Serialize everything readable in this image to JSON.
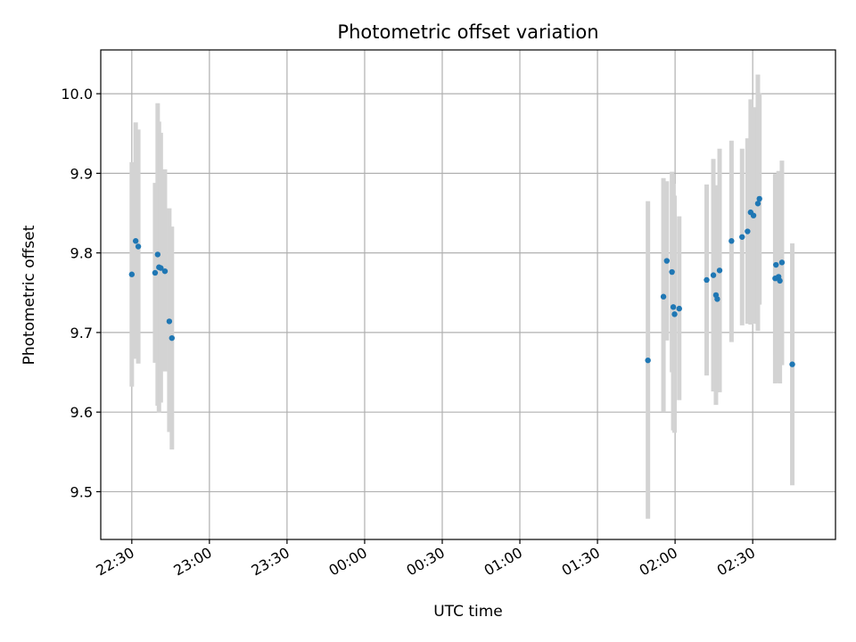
{
  "chart_data": {
    "type": "scatter",
    "title": "Photometric offset variation",
    "xlabel": "UTC time",
    "ylabel": "Photometric offset",
    "x_unit": "UTC time (minutes; 00:00 = 1440)",
    "xlim": [
      1338,
      1622
    ],
    "ylim": [
      9.44,
      10.055
    ],
    "grid": true,
    "x_ticks": [
      {
        "value": 1350,
        "label": "22:30"
      },
      {
        "value": 1380,
        "label": "23:00"
      },
      {
        "value": 1410,
        "label": "23:30"
      },
      {
        "value": 1440,
        "label": "00:00"
      },
      {
        "value": 1470,
        "label": "00:30"
      },
      {
        "value": 1500,
        "label": "01:00"
      },
      {
        "value": 1530,
        "label": "01:30"
      },
      {
        "value": 1560,
        "label": "02:00"
      },
      {
        "value": 1590,
        "label": "02:30"
      }
    ],
    "y_ticks": [
      {
        "value": 9.5,
        "label": "9.5"
      },
      {
        "value": 9.6,
        "label": "9.6"
      },
      {
        "value": 9.7,
        "label": "9.7"
      },
      {
        "value": 9.8,
        "label": "9.8"
      },
      {
        "value": 9.9,
        "label": "9.9"
      },
      {
        "value": 10.0,
        "label": "10.0"
      }
    ],
    "colors": {
      "point": "#1f77b4",
      "errorbar": "#d3d3d3",
      "grid": "#b0b0b0"
    },
    "points": [
      {
        "x": 1350.0,
        "y": 9.773,
        "lo": 9.632,
        "hi": 9.914
      },
      {
        "x": 1351.5,
        "y": 9.815,
        "lo": 9.667,
        "hi": 9.964
      },
      {
        "x": 1352.5,
        "y": 9.808,
        "lo": 9.661,
        "hi": 9.955
      },
      {
        "x": 1359.0,
        "y": 9.775,
        "lo": 9.662,
        "hi": 9.888
      },
      {
        "x": 1360.0,
        "y": 9.798,
        "lo": 9.608,
        "hi": 9.988
      },
      {
        "x": 1360.5,
        "y": 9.782,
        "lo": 9.599,
        "hi": 9.965
      },
      {
        "x": 1361.2,
        "y": 9.781,
        "lo": 9.612,
        "hi": 9.951
      },
      {
        "x": 1362.8,
        "y": 9.777,
        "lo": 9.651,
        "hi": 9.905
      },
      {
        "x": 1364.5,
        "y": 9.714,
        "lo": 9.575,
        "hi": 9.856
      },
      {
        "x": 1365.5,
        "y": 9.693,
        "lo": 9.553,
        "hi": 9.833
      },
      {
        "x": 1549.5,
        "y": 9.665,
        "lo": 9.466,
        "hi": 9.865
      },
      {
        "x": 1555.5,
        "y": 9.745,
        "lo": 9.6,
        "hi": 9.894
      },
      {
        "x": 1556.8,
        "y": 9.79,
        "lo": 9.69,
        "hi": 9.89
      },
      {
        "x": 1558.8,
        "y": 9.776,
        "lo": 9.65,
        "hi": 9.902
      },
      {
        "x": 1559.3,
        "y": 9.732,
        "lo": 9.577,
        "hi": 9.887
      },
      {
        "x": 1559.8,
        "y": 9.723,
        "lo": 9.574,
        "hi": 9.872
      },
      {
        "x": 1561.6,
        "y": 9.73,
        "lo": 9.615,
        "hi": 9.846
      },
      {
        "x": 1572.2,
        "y": 9.766,
        "lo": 9.646,
        "hi": 9.886
      },
      {
        "x": 1574.8,
        "y": 9.772,
        "lo": 9.626,
        "hi": 9.918
      },
      {
        "x": 1575.8,
        "y": 9.747,
        "lo": 9.609,
        "hi": 9.885
      },
      {
        "x": 1576.3,
        "y": 9.742,
        "lo": 9.625,
        "hi": 9.859
      },
      {
        "x": 1577.2,
        "y": 9.778,
        "lo": 9.625,
        "hi": 9.931
      },
      {
        "x": 1581.8,
        "y": 9.815,
        "lo": 9.688,
        "hi": 9.941
      },
      {
        "x": 1585.9,
        "y": 9.82,
        "lo": 9.709,
        "hi": 9.931
      },
      {
        "x": 1588.0,
        "y": 9.827,
        "lo": 9.711,
        "hi": 9.944
      },
      {
        "x": 1589.2,
        "y": 9.851,
        "lo": 9.71,
        "hi": 9.993
      },
      {
        "x": 1590.3,
        "y": 9.847,
        "lo": 9.711,
        "hi": 9.983
      },
      {
        "x": 1592.0,
        "y": 9.862,
        "lo": 9.702,
        "hi": 10.024
      },
      {
        "x": 1592.6,
        "y": 9.868,
        "lo": 9.735,
        "hi": 10.001
      },
      {
        "x": 1598.7,
        "y": 9.768,
        "lo": 9.636,
        "hi": 9.899
      },
      {
        "x": 1599.0,
        "y": 9.785,
        "lo": 9.671,
        "hi": 9.899
      },
      {
        "x": 1600.0,
        "y": 9.77,
        "lo": 9.637,
        "hi": 9.903
      },
      {
        "x": 1600.5,
        "y": 9.765,
        "lo": 9.636,
        "hi": 9.895
      },
      {
        "x": 1601.3,
        "y": 9.788,
        "lo": 9.659,
        "hi": 9.916
      },
      {
        "x": 1605.3,
        "y": 9.66,
        "lo": 9.508,
        "hi": 9.812
      }
    ]
  }
}
